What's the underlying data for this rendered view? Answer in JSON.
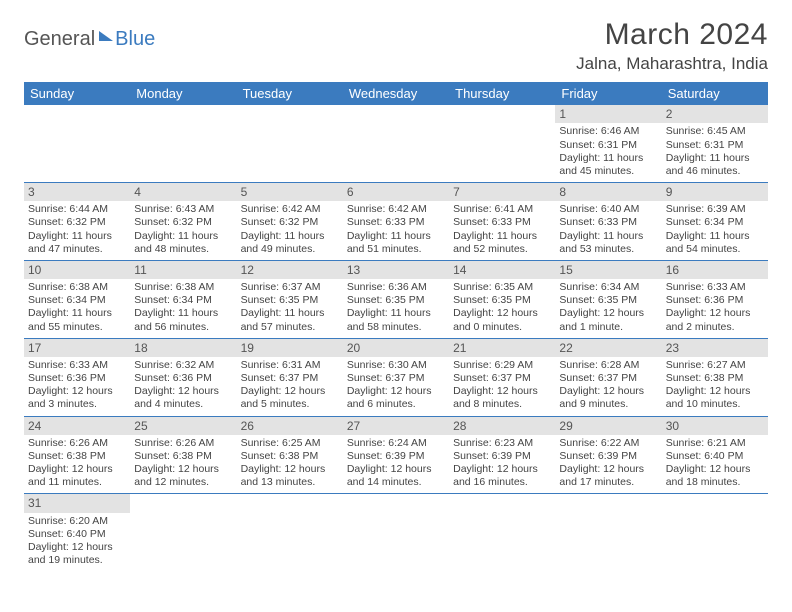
{
  "logo": {
    "text1": "General",
    "text2": "Blue"
  },
  "title": "March 2024",
  "location": "Jalna, Maharashtra, India",
  "colors": {
    "header_bg": "#3b7bbf",
    "header_fg": "#ffffff",
    "daynum_bg": "#e3e3e3",
    "row_border": "#3b7bbf",
    "page_bg": "#ffffff"
  },
  "weekdays": [
    "Sunday",
    "Monday",
    "Tuesday",
    "Wednesday",
    "Thursday",
    "Friday",
    "Saturday"
  ],
  "grid": [
    [
      null,
      null,
      null,
      null,
      null,
      {
        "n": "1",
        "sr": "6:46 AM",
        "ss": "6:31 PM",
        "dl": "11 hours and 45 minutes."
      },
      {
        "n": "2",
        "sr": "6:45 AM",
        "ss": "6:31 PM",
        "dl": "11 hours and 46 minutes."
      }
    ],
    [
      {
        "n": "3",
        "sr": "6:44 AM",
        "ss": "6:32 PM",
        "dl": "11 hours and 47 minutes."
      },
      {
        "n": "4",
        "sr": "6:43 AM",
        "ss": "6:32 PM",
        "dl": "11 hours and 48 minutes."
      },
      {
        "n": "5",
        "sr": "6:42 AM",
        "ss": "6:32 PM",
        "dl": "11 hours and 49 minutes."
      },
      {
        "n": "6",
        "sr": "6:42 AM",
        "ss": "6:33 PM",
        "dl": "11 hours and 51 minutes."
      },
      {
        "n": "7",
        "sr": "6:41 AM",
        "ss": "6:33 PM",
        "dl": "11 hours and 52 minutes."
      },
      {
        "n": "8",
        "sr": "6:40 AM",
        "ss": "6:33 PM",
        "dl": "11 hours and 53 minutes."
      },
      {
        "n": "9",
        "sr": "6:39 AM",
        "ss": "6:34 PM",
        "dl": "11 hours and 54 minutes."
      }
    ],
    [
      {
        "n": "10",
        "sr": "6:38 AM",
        "ss": "6:34 PM",
        "dl": "11 hours and 55 minutes."
      },
      {
        "n": "11",
        "sr": "6:38 AM",
        "ss": "6:34 PM",
        "dl": "11 hours and 56 minutes."
      },
      {
        "n": "12",
        "sr": "6:37 AM",
        "ss": "6:35 PM",
        "dl": "11 hours and 57 minutes."
      },
      {
        "n": "13",
        "sr": "6:36 AM",
        "ss": "6:35 PM",
        "dl": "11 hours and 58 minutes."
      },
      {
        "n": "14",
        "sr": "6:35 AM",
        "ss": "6:35 PM",
        "dl": "12 hours and 0 minutes."
      },
      {
        "n": "15",
        "sr": "6:34 AM",
        "ss": "6:35 PM",
        "dl": "12 hours and 1 minute."
      },
      {
        "n": "16",
        "sr": "6:33 AM",
        "ss": "6:36 PM",
        "dl": "12 hours and 2 minutes."
      }
    ],
    [
      {
        "n": "17",
        "sr": "6:33 AM",
        "ss": "6:36 PM",
        "dl": "12 hours and 3 minutes."
      },
      {
        "n": "18",
        "sr": "6:32 AM",
        "ss": "6:36 PM",
        "dl": "12 hours and 4 minutes."
      },
      {
        "n": "19",
        "sr": "6:31 AM",
        "ss": "6:37 PM",
        "dl": "12 hours and 5 minutes."
      },
      {
        "n": "20",
        "sr": "6:30 AM",
        "ss": "6:37 PM",
        "dl": "12 hours and 6 minutes."
      },
      {
        "n": "21",
        "sr": "6:29 AM",
        "ss": "6:37 PM",
        "dl": "12 hours and 8 minutes."
      },
      {
        "n": "22",
        "sr": "6:28 AM",
        "ss": "6:37 PM",
        "dl": "12 hours and 9 minutes."
      },
      {
        "n": "23",
        "sr": "6:27 AM",
        "ss": "6:38 PM",
        "dl": "12 hours and 10 minutes."
      }
    ],
    [
      {
        "n": "24",
        "sr": "6:26 AM",
        "ss": "6:38 PM",
        "dl": "12 hours and 11 minutes."
      },
      {
        "n": "25",
        "sr": "6:26 AM",
        "ss": "6:38 PM",
        "dl": "12 hours and 12 minutes."
      },
      {
        "n": "26",
        "sr": "6:25 AM",
        "ss": "6:38 PM",
        "dl": "12 hours and 13 minutes."
      },
      {
        "n": "27",
        "sr": "6:24 AM",
        "ss": "6:39 PM",
        "dl": "12 hours and 14 minutes."
      },
      {
        "n": "28",
        "sr": "6:23 AM",
        "ss": "6:39 PM",
        "dl": "12 hours and 16 minutes."
      },
      {
        "n": "29",
        "sr": "6:22 AM",
        "ss": "6:39 PM",
        "dl": "12 hours and 17 minutes."
      },
      {
        "n": "30",
        "sr": "6:21 AM",
        "ss": "6:40 PM",
        "dl": "12 hours and 18 minutes."
      }
    ],
    [
      {
        "n": "31",
        "sr": "6:20 AM",
        "ss": "6:40 PM",
        "dl": "12 hours and 19 minutes."
      },
      null,
      null,
      null,
      null,
      null,
      null
    ]
  ],
  "labels": {
    "sunrise": "Sunrise:",
    "sunset": "Sunset:",
    "daylight": "Daylight:"
  }
}
